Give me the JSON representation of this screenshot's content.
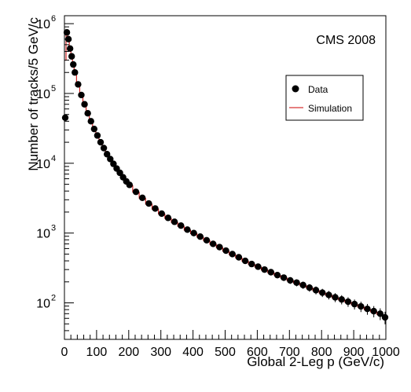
{
  "chart_data": {
    "type": "scatter",
    "experiment_label": "CMS 2008",
    "xlabel": "Global 2-Leg  p (GeV/c)",
    "ylabel": "Number of tracks/5 GeV/c",
    "xlim": [
      0,
      1000
    ],
    "ylim": [
      30,
      1300000
    ],
    "y_scale": "log",
    "grid": false,
    "legend_position": "top-right",
    "x_ticks": [
      0,
      100,
      200,
      300,
      400,
      500,
      600,
      700,
      800,
      900,
      1000
    ],
    "y_ticks": [
      {
        "value": 100,
        "label": "10",
        "exp": "2"
      },
      {
        "value": 1000,
        "label": "10",
        "exp": "3"
      },
      {
        "value": 10000,
        "label": "10",
        "exp": "4"
      },
      {
        "value": 100000,
        "label": "10",
        "exp": "5"
      },
      {
        "value": 1000000,
        "label": "10",
        "exp": "6"
      }
    ],
    "series": [
      {
        "name": "Data",
        "style": "markers",
        "color": "#000000",
        "x": [
          2.5,
          7.5,
          12.5,
          17.5,
          22.5,
          27.5,
          32.5,
          42.5,
          52.5,
          62.5,
          72.5,
          82.5,
          92.5,
          102.5,
          112.5,
          122.5,
          132.5,
          142.5,
          152.5,
          162.5,
          172.5,
          182.5,
          192.5,
          202.5,
          222.5,
          242.5,
          262.5,
          282.5,
          302.5,
          322.5,
          342.5,
          362.5,
          382.5,
          402.5,
          422.5,
          442.5,
          462.5,
          482.5,
          502.5,
          522.5,
          542.5,
          562.5,
          582.5,
          602.5,
          622.5,
          642.5,
          662.5,
          682.5,
          702.5,
          722.5,
          742.5,
          762.5,
          782.5,
          802.5,
          822.5,
          842.5,
          862.5,
          882.5,
          902.5,
          922.5,
          942.5,
          962.5,
          982.5,
          997.5
        ],
        "y": [
          45000,
          750000,
          600000,
          440000,
          340000,
          260000,
          200000,
          135000,
          95000,
          70000,
          52000,
          40000,
          31000,
          25000,
          20000,
          16500,
          13500,
          11500,
          9800,
          8400,
          7300,
          6300,
          5500,
          4900,
          3900,
          3200,
          2650,
          2250,
          1900,
          1650,
          1450,
          1280,
          1120,
          1000,
          890,
          790,
          700,
          630,
          560,
          500,
          450,
          400,
          360,
          330,
          300,
          275,
          250,
          230,
          210,
          195,
          180,
          165,
          152,
          140,
          130,
          120,
          112,
          104,
          96,
          89,
          82,
          76,
          70,
          62
        ]
      },
      {
        "name": "Simulation",
        "style": "step",
        "color": "#cc0000",
        "x": [
          2.5,
          7.5,
          12.5,
          17.5,
          22.5,
          27.5,
          32.5,
          42.5,
          52.5,
          62.5,
          72.5,
          82.5,
          92.5,
          102.5,
          112.5,
          122.5,
          132.5,
          142.5,
          152.5,
          162.5,
          172.5,
          182.5,
          192.5,
          202.5,
          222.5,
          242.5,
          262.5,
          282.5,
          302.5,
          322.5,
          342.5,
          362.5,
          382.5,
          402.5,
          422.5,
          442.5,
          462.5,
          482.5,
          502.5,
          522.5,
          542.5,
          562.5,
          582.5,
          602.5,
          622.5,
          642.5,
          662.5,
          682.5,
          702.5,
          722.5,
          742.5,
          762.5,
          782.5,
          802.5,
          822.5,
          842.5,
          862.5,
          882.5,
          902.5,
          922.5,
          942.5,
          962.5,
          982.5,
          997.5
        ],
        "y": [
          300000,
          700000,
          580000,
          430000,
          330000,
          255000,
          198000,
          132000,
          93000,
          69000,
          51000,
          39500,
          30500,
          24500,
          19600,
          16200,
          13300,
          11300,
          9600,
          8300,
          7200,
          6200,
          5400,
          4800,
          3850,
          3150,
          2600,
          2200,
          1870,
          1620,
          1420,
          1250,
          1100,
          980,
          870,
          780,
          690,
          620,
          550,
          490,
          440,
          395,
          355,
          325,
          295,
          270,
          248,
          228,
          208,
          192,
          178,
          163,
          150,
          138,
          128,
          118,
          110,
          102,
          94,
          87,
          80,
          74,
          68,
          60
        ]
      }
    ]
  }
}
